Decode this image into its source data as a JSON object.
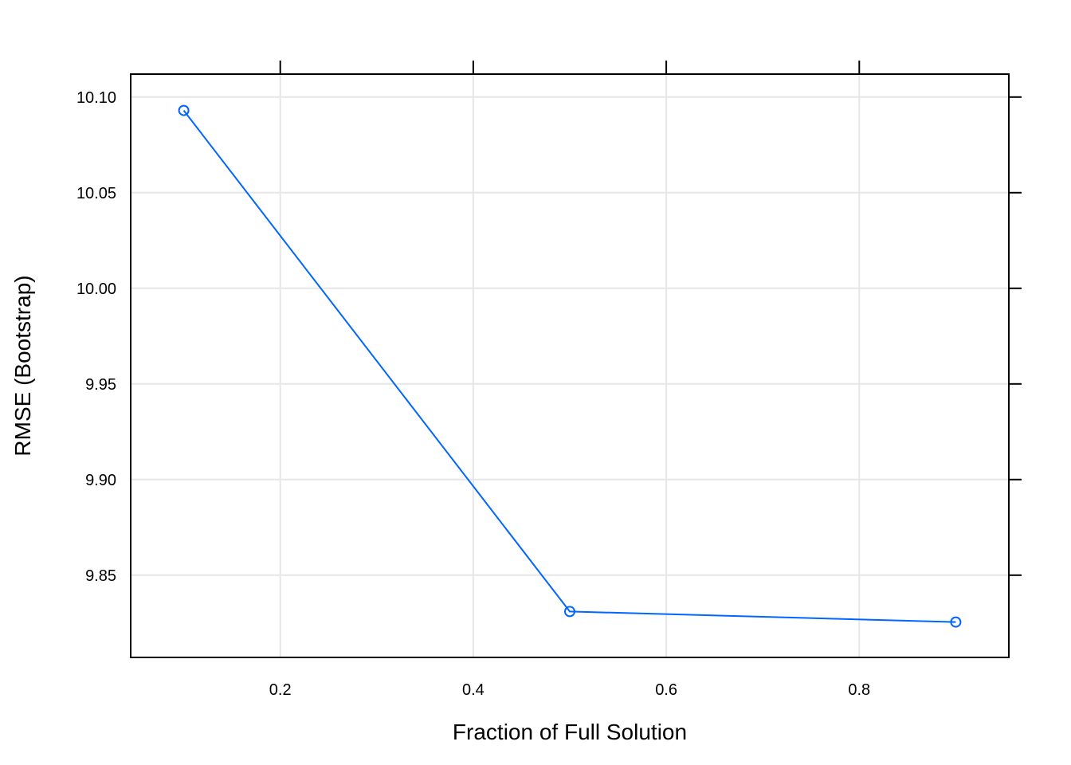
{
  "chart_data": {
    "type": "line",
    "title": "",
    "xlabel": "Fraction of Full Solution",
    "ylabel": "RMSE (Bootstrap)",
    "xlim": [
      0.045,
      0.955
    ],
    "ylim": [
      9.807,
      10.112
    ],
    "x_ticks": [
      {
        "value": 0.2,
        "label": "0.2"
      },
      {
        "value": 0.4,
        "label": "0.4"
      },
      {
        "value": 0.6,
        "label": "0.6"
      },
      {
        "value": 0.8,
        "label": "0.8"
      }
    ],
    "y_ticks": [
      {
        "value": 9.85,
        "label": "9.85"
      },
      {
        "value": 9.9,
        "label": "9.90"
      },
      {
        "value": 9.95,
        "label": "9.95"
      },
      {
        "value": 10.0,
        "label": "10.00"
      },
      {
        "value": 10.05,
        "label": "10.05"
      },
      {
        "value": 10.1,
        "label": "10.10"
      }
    ],
    "grid": true,
    "series": [
      {
        "color": "#0066FF",
        "marker": "open-circle",
        "points": [
          {
            "x": 0.1,
            "y": 10.093
          },
          {
            "x": 0.5,
            "y": 9.831
          },
          {
            "x": 0.9,
            "y": 9.8255
          }
        ]
      }
    ]
  }
}
